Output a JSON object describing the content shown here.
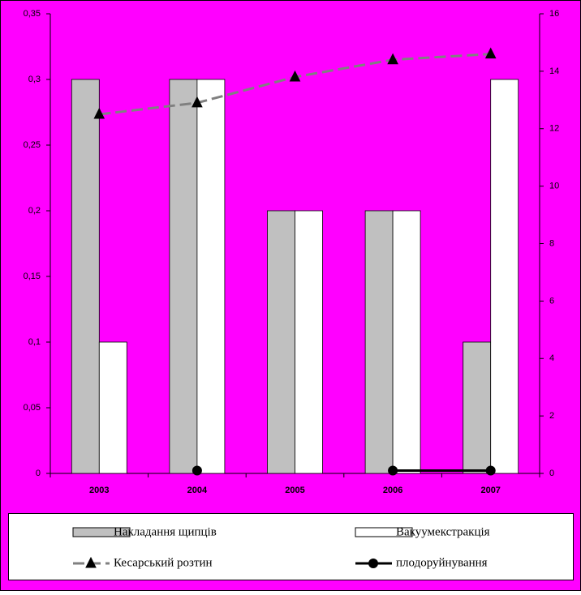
{
  "chart_data": {
    "type": "bar",
    "categories": [
      "2003",
      "2004",
      "2005",
      "2006",
      "2007"
    ],
    "series": [
      {
        "name": "Накладання щипців",
        "type": "bar",
        "color": "#c0c0c0",
        "values": [
          0.3,
          0.3,
          0.2,
          0.2,
          0.1
        ]
      },
      {
        "name": "Вакуумекстракція",
        "type": "bar",
        "color": "#ffffff",
        "values": [
          0.1,
          0.3,
          0.2,
          0.2,
          0.3
        ]
      },
      {
        "name": "Кесарський розтин",
        "type": "line",
        "axis": "y2",
        "color": "#808080",
        "marker": "triangle",
        "values": [
          12.5,
          12.9,
          13.8,
          14.4,
          14.6
        ]
      },
      {
        "name": "плодоруйнування",
        "type": "line",
        "axis": "y2",
        "color": "#000000",
        "marker": "circle",
        "values": [
          null,
          0.1,
          null,
          0.1,
          0.1
        ]
      }
    ],
    "ylim": [
      0,
      0.35
    ],
    "yticks": [
      0,
      {
        "value": 0.05,
        "label": "0,05"
      },
      {
        "value": 0.1,
        "label": "0,1"
      },
      {
        "value": 0.15,
        "label": "0,15"
      },
      {
        "value": 0.2,
        "label": "0,2"
      },
      {
        "value": 0.25,
        "label": "0,25"
      },
      {
        "value": 0.3,
        "label": "0,3"
      },
      {
        "value": 0.35,
        "label": "0,35"
      }
    ],
    "y2lim": [
      0,
      16
    ],
    "y2ticks": [
      0,
      2,
      4,
      6,
      8,
      10,
      12,
      14,
      16
    ],
    "legend": "bottom"
  }
}
